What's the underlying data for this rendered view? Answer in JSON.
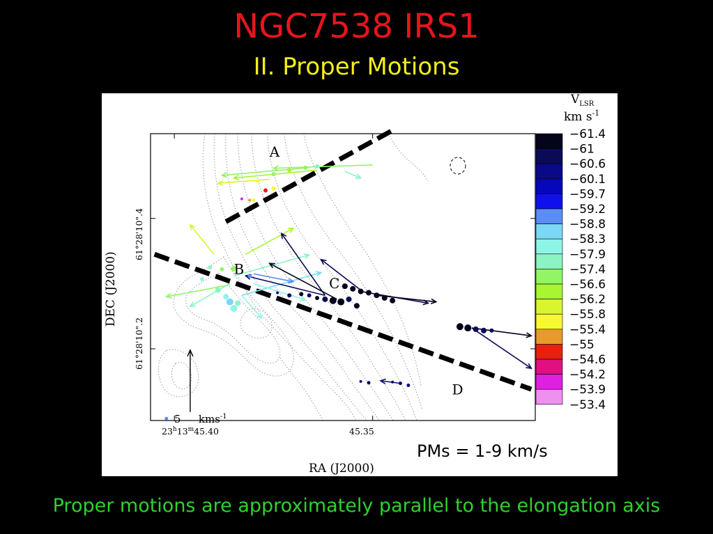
{
  "slide": {
    "title": "NGC7538 IRS1",
    "subtitle": "II. Proper Motions",
    "footer": "Proper motions are approximately parallel to the elongation axis"
  },
  "chart_data": {
    "type": "scatter",
    "xlabel": "RA (J2000)",
    "ylabel": "DEC (J2000)",
    "x_ticks": [
      {
        "label": "23h13m45.s40",
        "ra": 45.4
      },
      {
        "label": "45.s35",
        "ra": 45.35
      }
    ],
    "y_ticks": [
      {
        "label": "61°28'10\".4",
        "dec": 10.4
      },
      {
        "label": "61°28'10\".2",
        "dec": 10.2
      }
    ],
    "xlim_ra_s": [
      45.406,
      45.309
    ],
    "ylim_dec_arcsec": [
      10.09,
      10.53
    ],
    "colorbar": {
      "label_top": "VLSR",
      "label_units": "km s",
      "label_exp": "-1",
      "levels": [
        -61.4,
        -61,
        -60.6,
        -60.1,
        -59.7,
        -59.2,
        -58.8,
        -58.3,
        -57.9,
        -57.4,
        -56.6,
        -56.2,
        -55.8,
        -55.4,
        -55,
        -54.6,
        -54.2,
        -53.9,
        -53.4
      ],
      "level_labels": [
        "−61.4",
        "−61",
        "−60.6",
        "−60.1",
        "−59.7",
        "−59.2",
        "−58.8",
        "−58.3",
        "−57.9",
        "−57.4",
        "−56.6",
        "−56.2",
        "−55.8",
        "−55.4",
        "−55",
        "−54.6",
        "−54.2",
        "−53.9",
        "−53.4"
      ],
      "colors": [
        "#04041a",
        "#0b0b55",
        "#0a0a88",
        "#0606bb",
        "#1010ee",
        "#5a8ef5",
        "#7ad8f5",
        "#8ef5e6",
        "#8af5c2",
        "#92f565",
        "#a8f530",
        "#d8f530",
        "#f8f830",
        "#e89a2a",
        "#e82010",
        "#e01080",
        "#e020e0",
        "#ee90ee"
      ]
    },
    "groups": [
      {
        "label": "A",
        "label_ra": 45.376,
        "label_dec": 10.495
      },
      {
        "label": "B",
        "label_ra": 45.385,
        "label_dec": 10.315
      },
      {
        "label": "C",
        "label_ra": 45.361,
        "label_dec": 10.293
      },
      {
        "label": "D",
        "label_ra": 45.33,
        "label_dec": 10.13
      }
    ],
    "elongation_lines": [
      {
        "from": [
          45.387,
          10.395
        ],
        "to": [
          45.345,
          10.535
        ]
      },
      {
        "from": [
          45.405,
          10.345
        ],
        "to": [
          45.31,
          10.138
        ]
      }
    ],
    "scale_bar": {
      "value": "5",
      "unit": "kms",
      "unit_exp": "-1",
      "ra": 45.396,
      "dec_from": 10.103,
      "dec_to": 10.198
    },
    "masers": [
      {
        "ra": 45.375,
        "dec": 10.468,
        "v": -56.6,
        "s": 3
      },
      {
        "ra": 45.371,
        "dec": 10.474,
        "v": -56.2,
        "s": 3
      },
      {
        "ra": 45.367,
        "dec": 10.478,
        "v": -56.6,
        "s": 3
      },
      {
        "ra": 45.364,
        "dec": 10.48,
        "v": -57.4,
        "s": 3
      },
      {
        "ra": 45.379,
        "dec": 10.457,
        "v": -55.4,
        "s": 2
      },
      {
        "ra": 45.377,
        "dec": 10.443,
        "v": -54.6,
        "s": 3
      },
      {
        "ra": 45.375,
        "dec": 10.446,
        "v": -55.4,
        "s": 3
      },
      {
        "ra": 45.38,
        "dec": 10.428,
        "v": -55.4,
        "s": 2.5
      },
      {
        "ra": 45.381,
        "dec": 10.428,
        "v": -55.0,
        "s": 2
      },
      {
        "ra": 45.383,
        "dec": 10.43,
        "v": -53.9,
        "s": 2
      },
      {
        "ra": 45.391,
        "dec": 10.325,
        "v": -57.4,
        "s": 3
      },
      {
        "ra": 45.388,
        "dec": 10.322,
        "v": -56.6,
        "s": 3
      },
      {
        "ra": 45.385,
        "dec": 10.323,
        "v": -56.6,
        "s": 4
      },
      {
        "ra": 45.393,
        "dec": 10.307,
        "v": -57.9,
        "s": 3
      },
      {
        "ra": 45.389,
        "dec": 10.29,
        "v": -57.4,
        "s": 4
      },
      {
        "ra": 45.387,
        "dec": 10.28,
        "v": -57.9,
        "s": 4
      },
      {
        "ra": 45.386,
        "dec": 10.272,
        "v": -58.3,
        "s": 5
      },
      {
        "ra": 45.385,
        "dec": 10.262,
        "v": -57.9,
        "s": 5
      },
      {
        "ra": 45.384,
        "dec": 10.27,
        "v": -57.4,
        "s": 4
      },
      {
        "ra": 45.381,
        "dec": 10.312,
        "v": -58.8,
        "s": 3
      },
      {
        "ra": 45.374,
        "dec": 10.286,
        "v": -60.1,
        "s": 2
      },
      {
        "ra": 45.371,
        "dec": 10.282,
        "v": -60.6,
        "s": 3
      },
      {
        "ra": 45.368,
        "dec": 10.284,
        "v": -61.0,
        "s": 3
      },
      {
        "ra": 45.366,
        "dec": 10.282,
        "v": -60.6,
        "s": 3
      },
      {
        "ra": 45.364,
        "dec": 10.278,
        "v": -61.0,
        "s": 3
      },
      {
        "ra": 45.362,
        "dec": 10.276,
        "v": -60.6,
        "s": 4
      },
      {
        "ra": 45.36,
        "dec": 10.274,
        "v": -61.0,
        "s": 5
      },
      {
        "ra": 45.358,
        "dec": 10.272,
        "v": -61.0,
        "s": 5
      },
      {
        "ra": 45.356,
        "dec": 10.276,
        "v": -60.6,
        "s": 4
      },
      {
        "ra": 45.354,
        "dec": 10.266,
        "v": -61.0,
        "s": 4
      },
      {
        "ra": 45.357,
        "dec": 10.296,
        "v": -61.4,
        "s": 4
      },
      {
        "ra": 45.355,
        "dec": 10.292,
        "v": -61.4,
        "s": 4
      },
      {
        "ra": 45.353,
        "dec": 10.288,
        "v": -61.4,
        "s": 4
      },
      {
        "ra": 45.351,
        "dec": 10.286,
        "v": -61.0,
        "s": 4
      },
      {
        "ra": 45.349,
        "dec": 10.282,
        "v": -61.0,
        "s": 4
      },
      {
        "ra": 45.347,
        "dec": 10.278,
        "v": -61.0,
        "s": 4
      },
      {
        "ra": 45.345,
        "dec": 10.274,
        "v": -61.0,
        "s": 4
      },
      {
        "ra": 45.328,
        "dec": 10.234,
        "v": -61.0,
        "s": 5
      },
      {
        "ra": 45.326,
        "dec": 10.232,
        "v": -61.0,
        "s": 5
      },
      {
        "ra": 45.324,
        "dec": 10.23,
        "v": -60.6,
        "s": 4
      },
      {
        "ra": 45.322,
        "dec": 10.228,
        "v": -60.6,
        "s": 4
      },
      {
        "ra": 45.32,
        "dec": 10.228,
        "v": -60.6,
        "s": 3
      },
      {
        "ra": 45.353,
        "dec": 10.15,
        "v": -60.1,
        "s": 2
      },
      {
        "ra": 45.351,
        "dec": 10.148,
        "v": -60.6,
        "s": 2.5
      },
      {
        "ra": 45.345,
        "dec": 10.149,
        "v": -60.6,
        "s": 2
      },
      {
        "ra": 45.343,
        "dec": 10.147,
        "v": -60.6,
        "s": 2.5
      },
      {
        "ra": 45.341,
        "dec": 10.144,
        "v": -60.1,
        "s": 2.5
      },
      {
        "ra": 45.402,
        "dec": 10.093,
        "v": -58.8,
        "s": 2.5
      }
    ],
    "proper_motions": [
      {
        "ra": 45.35,
        "dec": 10.482,
        "dra": 0.025,
        "ddec": -0.005,
        "v": -56.6
      },
      {
        "ra": 45.366,
        "dec": 10.478,
        "dra": 0.022,
        "ddec": -0.012,
        "v": -56.6
      },
      {
        "ra": 45.364,
        "dec": 10.474,
        "dra": 0.021,
        "ddec": -0.012,
        "v": -56.2
      },
      {
        "ra": 45.357,
        "dec": 10.472,
        "dra": -0.004,
        "ddec": -0.01,
        "v": -57.4
      },
      {
        "ra": 45.376,
        "dec": 10.46,
        "dra": 0.013,
        "ddec": -0.006,
        "v": -55.8
      },
      {
        "ra": 45.39,
        "dec": 10.345,
        "dra": 0.006,
        "ddec": 0.045,
        "v": -55.8
      },
      {
        "ra": 45.382,
        "dec": 10.345,
        "dra": -0.012,
        "ddec": 0.04,
        "v": -56.2
      },
      {
        "ra": 45.385,
        "dec": 10.312,
        "dra": -0.019,
        "ddec": 0.032,
        "v": -57.4
      },
      {
        "ra": 45.386,
        "dec": 10.298,
        "dra": 0.016,
        "ddec": -0.018,
        "v": -56.6
      },
      {
        "ra": 45.386,
        "dec": 10.3,
        "dra": 0.01,
        "ddec": -0.035,
        "v": -57.4
      },
      {
        "ra": 45.383,
        "dec": 10.282,
        "dra": -0.005,
        "ddec": -0.035,
        "v": -57.9
      },
      {
        "ra": 45.383,
        "dec": 10.282,
        "dra": -0.02,
        "ddec": 0.035,
        "v": -58.3
      },
      {
        "ra": 45.38,
        "dec": 10.315,
        "dra": -0.01,
        "ddec": -0.012,
        "v": -58.8
      },
      {
        "ra": 45.38,
        "dec": 10.3,
        "dra": -0.013,
        "ddec": -0.025,
        "v": -57.9
      },
      {
        "ra": 45.362,
        "dec": 10.282,
        "dra": 0.011,
        "ddec": 0.095,
        "v": -60.6
      },
      {
        "ra": 45.362,
        "dec": 10.282,
        "dra": 0.02,
        "ddec": 0.03,
        "v": -60.6
      },
      {
        "ra": 45.359,
        "dec": 10.276,
        "dra": 0.017,
        "ddec": 0.055,
        "v": -61.0
      },
      {
        "ra": 45.353,
        "dec": 10.29,
        "dra": 0.01,
        "ddec": 0.047,
        "v": -60.6
      },
      {
        "ra": 45.353,
        "dec": 10.288,
        "dra": -0.017,
        "ddec": -0.018,
        "v": -60.6
      },
      {
        "ra": 45.349,
        "dec": 10.282,
        "dra": -0.015,
        "ddec": -0.01,
        "v": -61.0
      },
      {
        "ra": 45.325,
        "dec": 10.232,
        "dra": -0.015,
        "ddec": -0.012,
        "v": -61.0
      },
      {
        "ra": 45.325,
        "dec": 10.232,
        "dra": -0.015,
        "ddec": -0.062,
        "v": -60.6
      },
      {
        "ra": 45.343,
        "dec": 10.147,
        "dra": 0.005,
        "ddec": 0.004,
        "v": -60.1
      }
    ]
  },
  "annotation": {
    "pm_range": "PMs = 1-9 km/s"
  }
}
